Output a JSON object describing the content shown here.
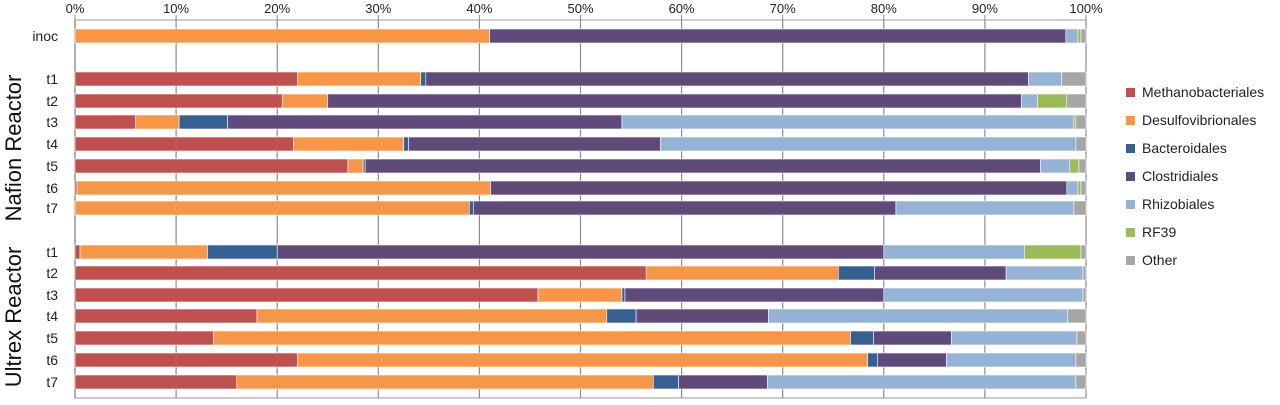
{
  "chart_data": {
    "type": "bar",
    "orientation": "horizontal",
    "stacked": "percent",
    "x_ticks": [
      "0%",
      "10%",
      "20%",
      "30%",
      "40%",
      "50%",
      "60%",
      "70%",
      "80%",
      "90%",
      "100%"
    ],
    "xlim": [
      0,
      100
    ],
    "grid": "vertical",
    "legend_position": "right",
    "legend": [
      "Methanobacteriales",
      "Desulfovibrionales",
      "Bacteroidales",
      "Clostridiales",
      "Rhizobiales",
      "RF39",
      "Other"
    ],
    "colors": {
      "Methanobacteriales": "#c0504d",
      "Desulfovibrionales": "#f79646",
      "Bacteroidales": "#376092",
      "Clostridiales": "#604a7b",
      "Rhizobiales": "#95b3d7",
      "RF39": "#9bbb59",
      "Other": "#a6a6a6"
    },
    "groups": [
      {
        "label": "",
        "rows": [
          {
            "label": "inoc",
            "values": [
              0,
              41,
              0,
              57,
              1.2,
              0.3,
              0.5
            ]
          }
        ]
      },
      {
        "label": "Nafion Reactor",
        "rows": [
          {
            "label": "t1",
            "values": [
              22,
              12.2,
              0.5,
              59.6,
              3.3,
              0,
              2.4
            ]
          },
          {
            "label": "t2",
            "values": [
              20.5,
              4.5,
              0,
              68.6,
              1.6,
              2.9,
              1.9
            ]
          },
          {
            "label": "t3",
            "values": [
              6,
              4.3,
              4.8,
              39,
              44.7,
              0.2,
              1
            ]
          },
          {
            "label": "t4",
            "values": [
              21.6,
              10.9,
              0.5,
              24.9,
              41.1,
              0,
              1
            ]
          },
          {
            "label": "t5",
            "values": [
              27,
              1.5,
              0.2,
              66.8,
              2.9,
              0.9,
              0.7
            ]
          },
          {
            "label": "t6",
            "values": [
              0.2,
              40.9,
              0,
              57,
              1.1,
              0.3,
              0.5
            ]
          },
          {
            "label": "t7",
            "values": [
              0,
              39,
              0.4,
              41.8,
              17.6,
              0,
              1.2
            ]
          }
        ]
      },
      {
        "label": "Ultrex Reactor",
        "rows": [
          {
            "label": "t1",
            "values": [
              0.5,
              12.6,
              6.9,
              60,
              13.9,
              5.6,
              0.5
            ]
          },
          {
            "label": "t2",
            "values": [
              56.5,
              19,
              3.6,
              13,
              7.6,
              0,
              0.3
            ]
          },
          {
            "label": "t3",
            "values": [
              45.8,
              8.3,
              0.3,
              25.6,
              19.7,
              0,
              0.3
            ]
          },
          {
            "label": "t4",
            "values": [
              18,
              34.6,
              2.9,
              13.1,
              29.6,
              0,
              1.8
            ]
          },
          {
            "label": "t5",
            "values": [
              13.7,
              63,
              2.3,
              7.7,
              12.4,
              0,
              0.9
            ]
          },
          {
            "label": "t6",
            "values": [
              22,
              56.4,
              1,
              6.8,
              12.8,
              0,
              1
            ]
          },
          {
            "label": "t7",
            "values": [
              16,
              41.2,
              2.5,
              8.8,
              30.5,
              0,
              1
            ]
          }
        ]
      }
    ]
  }
}
